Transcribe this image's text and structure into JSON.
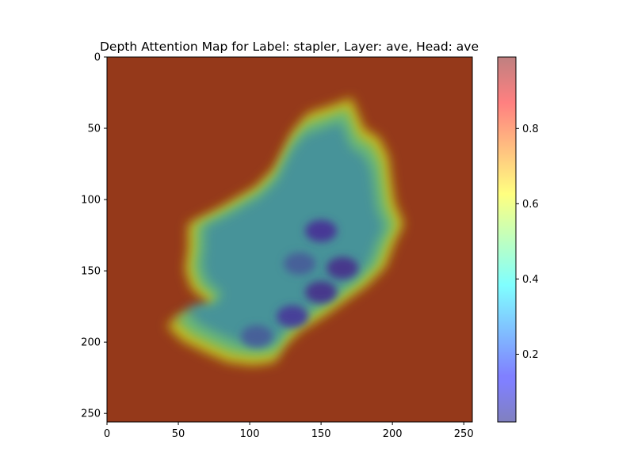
{
  "chart_data": {
    "type": "heatmap",
    "title": "Depth Attention Map for Label: stapler, Layer: ave, Head: ave",
    "xlabel": "",
    "ylabel": "",
    "image_size": [
      256,
      256
    ],
    "xlim": [
      0,
      256
    ],
    "ylim": [
      256,
      0
    ],
    "x_ticks": [
      0,
      50,
      100,
      150,
      200,
      250
    ],
    "y_ticks": [
      0,
      50,
      100,
      150,
      200,
      250
    ],
    "colormap": "jet",
    "alpha": 0.5,
    "colorbar": {
      "range": [
        0.02,
        0.99
      ],
      "ticks": [
        0.2,
        0.4,
        0.6,
        0.8
      ]
    },
    "grid": false,
    "background_value": 0.97,
    "regions": [
      {
        "description": "low-attention stapler blob",
        "level": 0.3,
        "outline": [
          [
            62,
            118
          ],
          [
            82,
            108
          ],
          [
            106,
            94
          ],
          [
            118,
            82
          ],
          [
            124,
            70
          ],
          [
            130,
            58
          ],
          [
            140,
            46
          ],
          [
            158,
            40
          ],
          [
            168,
            36
          ],
          [
            172,
            46
          ],
          [
            176,
            56
          ],
          [
            186,
            62
          ],
          [
            192,
            74
          ],
          [
            194,
            90
          ],
          [
            196,
            104
          ],
          [
            202,
            118
          ],
          [
            196,
            130
          ],
          [
            190,
            146
          ],
          [
            178,
            158
          ],
          [
            164,
            168
          ],
          [
            150,
            178
          ],
          [
            134,
            188
          ],
          [
            124,
            198
          ],
          [
            118,
            208
          ],
          [
            104,
            210
          ],
          [
            88,
            208
          ],
          [
            74,
            202
          ],
          [
            58,
            194
          ],
          [
            48,
            184
          ],
          [
            56,
            178
          ],
          [
            70,
            178
          ],
          [
            76,
            170
          ],
          [
            64,
            160
          ],
          [
            60,
            148
          ],
          [
            62,
            134
          ]
        ]
      }
    ],
    "hotspots": [
      {
        "x": 150,
        "y": 122,
        "value": 0.12
      },
      {
        "x": 165,
        "y": 148,
        "value": 0.1
      },
      {
        "x": 150,
        "y": 165,
        "value": 0.1
      },
      {
        "x": 130,
        "y": 182,
        "value": 0.14
      },
      {
        "x": 105,
        "y": 196,
        "value": 0.2
      },
      {
        "x": 135,
        "y": 145,
        "value": 0.2
      }
    ]
  }
}
